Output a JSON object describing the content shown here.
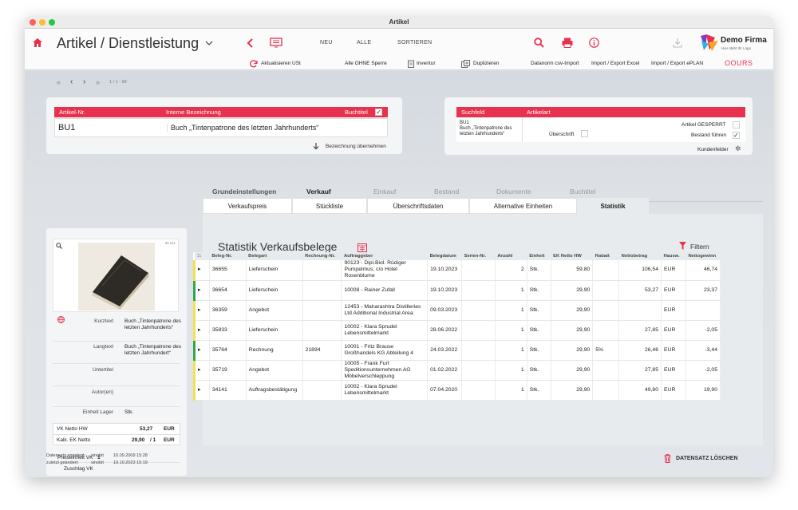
{
  "window": {
    "title": "Artikel"
  },
  "header": {
    "title": "Artikel / Dienstleistung",
    "nav": [
      "NEU",
      "ALLE",
      "SORTIEREN"
    ],
    "company": "Demo Firma",
    "tagline": "Hier steht Ihr Logo"
  },
  "toolbar2": {
    "items": [
      "Aktualisieren USt",
      "Alle OHNE Sperre",
      "Inventur",
      "Duplizieren",
      "Datanorm csv-Import",
      "Import / Export Excel",
      "Import / Export ePLAN"
    ],
    "brand": "OOURS"
  },
  "pager": {
    "label": "1 / 1 - 99"
  },
  "article": {
    "nr_header": "Artikel-Nr.",
    "desc_header": "Interne Bezeichnung",
    "buchtitel_label": "Buchtitel",
    "nr": "BU1",
    "desc": "Buch „Tintenpatrone des letzten Jahrhunderts“",
    "apply_label": "Bezeichnung übernehmen"
  },
  "search": {
    "col1": "Suchfeld",
    "col2": "Artikelart",
    "value": "BU1\nBuch „Tintenpatrone des letzten Jahrhunderts“",
    "ueberschrift": "Überschrift",
    "gesperrt": "Artikel GESPERRT",
    "bestand": "Bestand führen",
    "kundenfelder": "Kundenfelder"
  },
  "side": {
    "image_id": "30.211",
    "fields": [
      {
        "label": "Kurztext",
        "value": "Buch „Tintenpatrone des letzten Jahrhunderts“"
      },
      {
        "label": "Langtext",
        "value": "Buch „Tintenpatrone des letzten Jahrhundert“"
      },
      {
        "label": "Untertitel",
        "value": ""
      },
      {
        "label": "Autor(en)",
        "value": ""
      },
      {
        "label": "Einheit Lager",
        "value": "Stk."
      }
    ],
    "vk_label": "VK Netto HW",
    "vk_value": "53,27",
    "vk_cur": "EUR",
    "ek_label": "Kalk. EK Netto",
    "ek_value": "29,90",
    "ek_div": "/ 1",
    "ek_cur": "EUR",
    "preiseinheit_label": "Preiseinheit VK",
    "preiseinheit_value": "1",
    "zuschlag_label": "Zuschlag VK"
  },
  "tabs": [
    "Grundeinstellungen",
    "Verkauf",
    "Einkauf",
    "Bestand",
    "Dokumente",
    "Buchtitel"
  ],
  "subtabs": [
    "Verkaufspreis",
    "Stückliste",
    "Überschriftsdaten",
    "Alternative Einheiten",
    "Statistik"
  ],
  "stats": {
    "title": "Statistik Verkaufsbelege",
    "filter": "Filtern",
    "count": "11",
    "columns": [
      "Beleg-Nr.",
      "Belegart",
      "Rechnung-Nr.",
      "Auftraggeber",
      "Belegdatum",
      "Serien-Nr.",
      "Anzahl",
      "Einheit",
      "EK Netto HW",
      "Rabatt",
      "Nettobetrag",
      "Hausw.",
      "Nettogewinn"
    ],
    "rows": [
      {
        "nr": "36655",
        "art": "Lieferschein",
        "re": "",
        "auf": "90123 - Dipl.Biol. Rüdiger Pumpelmus, c/o Hotel Rosenblume",
        "datum": "19.10.2023",
        "serie": "",
        "anz": "2",
        "einh": "Stk.",
        "ek": "59,80",
        "rabatt": "",
        "netto": "106,54",
        "hw": "EUR",
        "gewinn": "46,74",
        "mark": "#f2e14a"
      },
      {
        "nr": "36654",
        "art": "Lieferschein",
        "re": "",
        "auf": "10008 - Rainer Zufall",
        "datum": "19.10.2023",
        "serie": "",
        "anz": "1",
        "einh": "Stk.",
        "ek": "29,90",
        "rabatt": "",
        "netto": "53,27",
        "hw": "EUR",
        "gewinn": "23,37",
        "mark": "#31a84f"
      },
      {
        "nr": "36359",
        "art": "Angebot",
        "re": "",
        "auf": "12453 - Maharashtra Distilleries Ltd Additional Industrial Area",
        "datum": "09.03.2023",
        "serie": "",
        "anz": "1",
        "einh": "Stk.",
        "ek": "29,90",
        "rabatt": "",
        "netto": "",
        "hw": "EUR",
        "gewinn": "",
        "mark": "#f2e14a"
      },
      {
        "nr": "35833",
        "art": "Lieferschein",
        "re": "",
        "auf": "10002 - Klara Sprudel Lebensmittelmarkt",
        "datum": "28.06.2022",
        "serie": "",
        "anz": "1",
        "einh": "Stk.",
        "ek": "29,90",
        "rabatt": "",
        "netto": "27,85",
        "hw": "EUR",
        "gewinn": "-2,05",
        "mark": "#f2e14a"
      },
      {
        "nr": "35764",
        "art": "Rechnung",
        "re": "21894",
        "auf": "10001 - Fritz Brause Großhandels KG Abteilung 4",
        "datum": "24.03.2022",
        "serie": "",
        "anz": "1",
        "einh": "Stk.",
        "ek": "29,90",
        "rabatt": "5%",
        "netto": "26,46",
        "hw": "EUR",
        "gewinn": "-3,44",
        "mark": "#31a84f"
      },
      {
        "nr": "35719",
        "art": "Angebot",
        "re": "",
        "auf": "10005 - Frank Furt Speditionsunternehmen AG Möbelverschleppung",
        "datum": "01.02.2022",
        "serie": "",
        "anz": "1",
        "einh": "Stk.",
        "ek": "29,90",
        "rabatt": "",
        "netto": "27,85",
        "hw": "EUR",
        "gewinn": "-2,05",
        "mark": "#f2e14a"
      },
      {
        "nr": "34141",
        "art": "Auftragsbestätigung",
        "re": "",
        "auf": "10002 - Klara Sprudel Lebensmittelmarkt",
        "datum": "07.04.2020",
        "serie": "",
        "anz": "1",
        "einh": "Stk.",
        "ek": "29,90",
        "rabatt": "",
        "netto": "49,80",
        "hw": "EUR",
        "gewinn": "19,90",
        "mark": "#f2e14a"
      }
    ]
  },
  "footer": {
    "created_label": "Datensatz angelegt:",
    "created_user": "sinobit",
    "created_date": "10.09.2009 15:28",
    "changed_label": "zuletzt geändert:",
    "changed_user": "sinobit",
    "changed_date": "19.10.2023 15:19",
    "delete_label": "DATENSATZ LÖSCHEN"
  },
  "colors": {
    "accent": "#e8314f"
  }
}
